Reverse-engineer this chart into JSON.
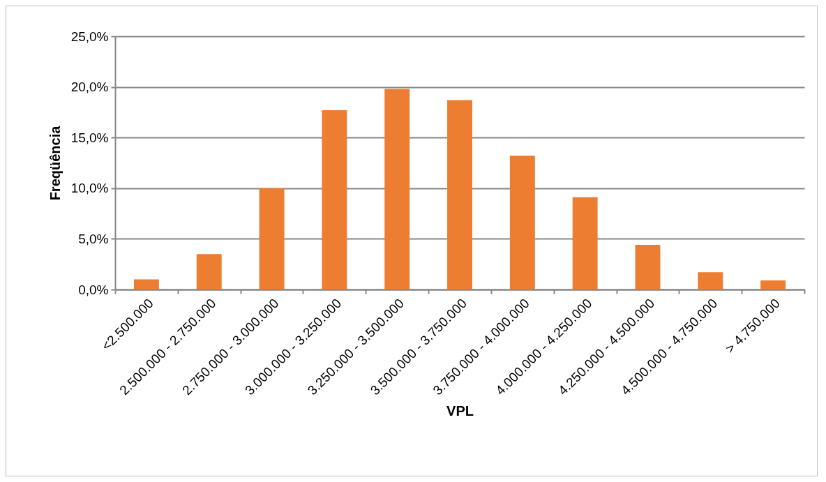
{
  "chart_data": {
    "type": "bar",
    "xlabel": "VPL",
    "ylabel": "Freqüência",
    "categories": [
      "<2.500.000",
      "2.500.000 - 2.750.000",
      "2.750.000 - 3.000.000",
      "3.000.000 - 3.250.000",
      "3.250.000 - 3.500.000",
      "3.500.000 - 3.750.000",
      "3.750.000 - 4.000.000",
      "4.000.000 - 4.250.000",
      "4.250.000 - 4.500.000",
      "4.500.000 - 4.750.000",
      "> 4.750.000"
    ],
    "values": [
      1.0,
      3.5,
      10.0,
      17.7,
      19.8,
      18.7,
      13.2,
      9.1,
      4.4,
      1.7,
      0.9
    ],
    "color": "#ed7d31",
    "ylim": [
      0,
      25
    ],
    "yticks": [
      {
        "value": 0,
        "label": "0,0%"
      },
      {
        "value": 5,
        "label": "5,0%"
      },
      {
        "value": 10,
        "label": "10,0%"
      },
      {
        "value": 15,
        "label": "15,0%"
      },
      {
        "value": 20,
        "label": "20,0%"
      },
      {
        "value": 25,
        "label": "25,0%"
      }
    ],
    "grid": "y"
  }
}
